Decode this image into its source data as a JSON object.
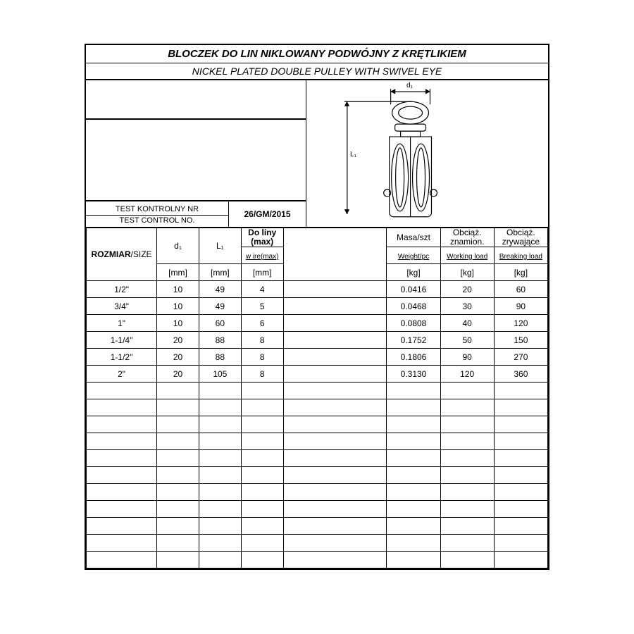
{
  "title_pl": "BLOCZEK DO LIN NIKLOWANY PODWÓJNY Z KRĘTLIKIEM",
  "title_en": "NICKEL PLATED DOUBLE PULLEY WITH SWIVEL EYE",
  "test_label_pl": "TEST KONTROLNY NR",
  "test_label_en": "TEST CONTROL NO.",
  "test_value": "26/GM/2015",
  "diagram": {
    "d1_label": "d₁",
    "l1_label": "L₁"
  },
  "headers": {
    "size_pl": "ROZMIAR",
    "size_en": "/SIZE",
    "d1": "d₁",
    "l1": "L₁",
    "wire_pl": "Do liny (max)",
    "wire_en": "w ire(max)",
    "weight_pl": "Masa/szt",
    "weight_en": "Weight/pc",
    "wl_pl": "Obciąż. znamion.",
    "wl_en": "Working load",
    "bl_pl": "Obciąż. zrywające",
    "bl_en": "Breaking load",
    "mm": "[mm]",
    "kg": "[kg]"
  },
  "rows": [
    {
      "size": "1/2\"",
      "d1": "10",
      "l1": "49",
      "wire": "4",
      "wt": "0.0416",
      "wl": "20",
      "bl": "60"
    },
    {
      "size": "3/4\"",
      "d1": "10",
      "l1": "49",
      "wire": "5",
      "wt": "0.0468",
      "wl": "30",
      "bl": "90"
    },
    {
      "size": "1\"",
      "d1": "10",
      "l1": "60",
      "wire": "6",
      "wt": "0.0808",
      "wl": "40",
      "bl": "120"
    },
    {
      "size": "1-1/4\"",
      "d1": "20",
      "l1": "88",
      "wire": "8",
      "wt": "0.1752",
      "wl": "50",
      "bl": "150"
    },
    {
      "size": "1-1/2\"",
      "d1": "20",
      "l1": "88",
      "wire": "8",
      "wt": "0.1806",
      "wl": "90",
      "bl": "270"
    },
    {
      "size": "2\"",
      "d1": "20",
      "l1": "105",
      "wire": "8",
      "wt": "0.3130",
      "wl": "120",
      "bl": "360"
    }
  ],
  "empty_rows": 11,
  "colors": {
    "line": "#000000",
    "bg": "#ffffff"
  }
}
